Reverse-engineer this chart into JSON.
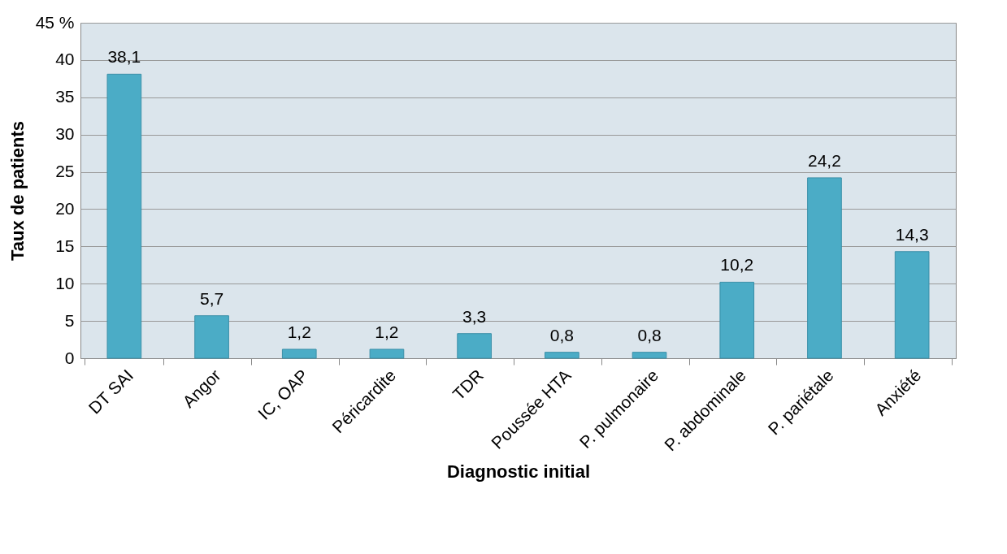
{
  "chart_data": {
    "type": "bar",
    "xlabel": "Diagnostic initial",
    "ylabel": "Taux de patients",
    "categories": [
      "DT SAI",
      "Angor",
      "IC, OAP",
      "Péricardite",
      "TDR",
      "Poussée HTA",
      "P. pulmonaire",
      "P. abdominale",
      "P. pariétale",
      "Anxiété"
    ],
    "values": [
      38.1,
      5.7,
      1.2,
      1.2,
      3.3,
      0.8,
      0.8,
      10.2,
      24.2,
      14.3
    ],
    "value_labels": [
      "38,1",
      "5,7",
      "1,2",
      "1,2",
      "3,3",
      "0,8",
      "0,8",
      "10,2",
      "24,2",
      "14,3"
    ],
    "color": "#4bacc6",
    "ylim": [
      0,
      45
    ],
    "yticks": [
      0,
      5,
      10,
      15,
      20,
      25,
      30,
      35,
      40,
      {
        "value": 45,
        "label": "45 %"
      }
    ],
    "grid": "y"
  }
}
